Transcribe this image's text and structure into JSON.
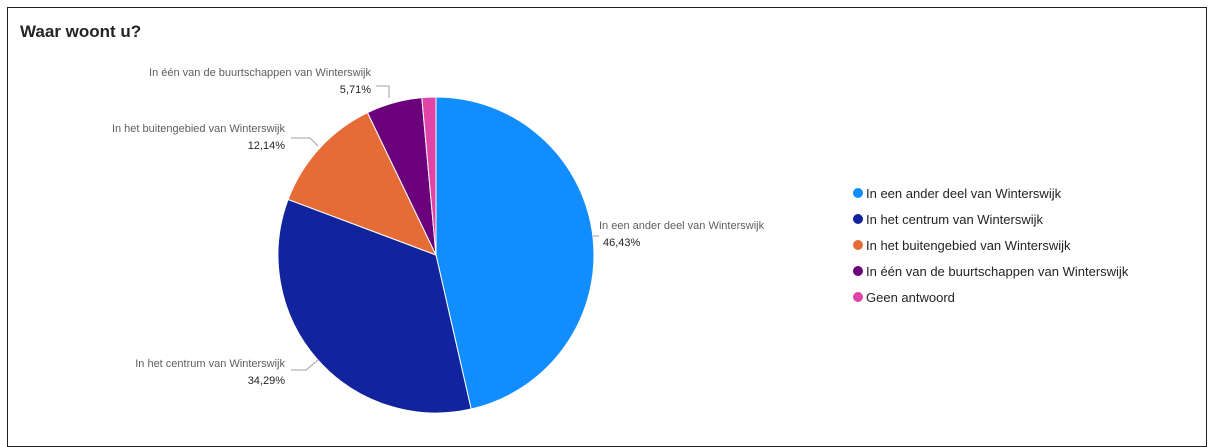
{
  "chart_data": {
    "type": "pie",
    "title": "Waar woont u?",
    "slices": [
      {
        "label": "In een ander deel van Winterswijk",
        "value": 46.43,
        "value_label": "46,43%",
        "color": "#118dff"
      },
      {
        "label": "In het centrum van Winterswijk",
        "value": 34.29,
        "value_label": "34,29%",
        "color": "#12239e"
      },
      {
        "label": "In het buitengebied van Winterswijk",
        "value": 12.14,
        "value_label": "12,14%",
        "color": "#e66c37"
      },
      {
        "label": "In één van de buurtschappen van Winterswijk",
        "value": 5.71,
        "value_label": "5,71%",
        "color": "#6b007b"
      },
      {
        "label": "Geen antwoord",
        "value": 1.43,
        "color": "#e044a7"
      }
    ],
    "legend": {
      "position": "right"
    },
    "start_angle_deg": 0,
    "direction": "clockwise"
  }
}
